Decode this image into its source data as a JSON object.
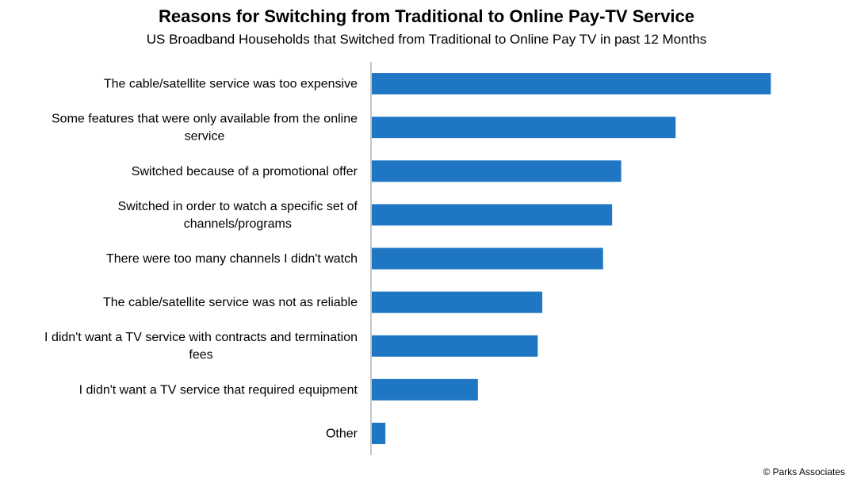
{
  "chart_data": {
    "type": "bar",
    "orientation": "horizontal",
    "title": "Reasons for Switching from Traditional to Online Pay-TV Service",
    "subtitle": "US Broadband  Households that Switched from Traditional to Online Pay TV in past 12 Months",
    "categories": [
      "The cable/satellite service was too expensive",
      "Some features that were only available from the online service",
      "Switched because of a promotional offer",
      "Switched in order to watch a specific set of channels/programs",
      "There were too many channels I didn't watch",
      "The cable/satellite service was not as reliable",
      "I didn't want a TV service with contracts and termination fees",
      "I didn't want a TV service that required equipment",
      "Other"
    ],
    "category_lines": [
      [
        "The cable/satellite service was too expensive"
      ],
      [
        "Some features that were only available from the online",
        "service"
      ],
      [
        "Switched because of a promotional offer"
      ],
      [
        "Switched in order to watch a specific set of",
        "channels/programs"
      ],
      [
        "There were too many channels I didn't watch"
      ],
      [
        "The cable/satellite service was not as reliable"
      ],
      [
        "I didn't want a TV service with contracts and termination",
        "fees"
      ],
      [
        "I didn't want a TV service that required equipment"
      ],
      [
        "Other"
      ]
    ],
    "values": [
      44,
      33.5,
      27.5,
      26.5,
      25.5,
      18.8,
      18.3,
      11.7,
      1.5
    ],
    "xlim": [
      0,
      50
    ],
    "grid": false,
    "legend": "none",
    "bar_color": "#1f77c4"
  },
  "credit": "© Parks Associates"
}
